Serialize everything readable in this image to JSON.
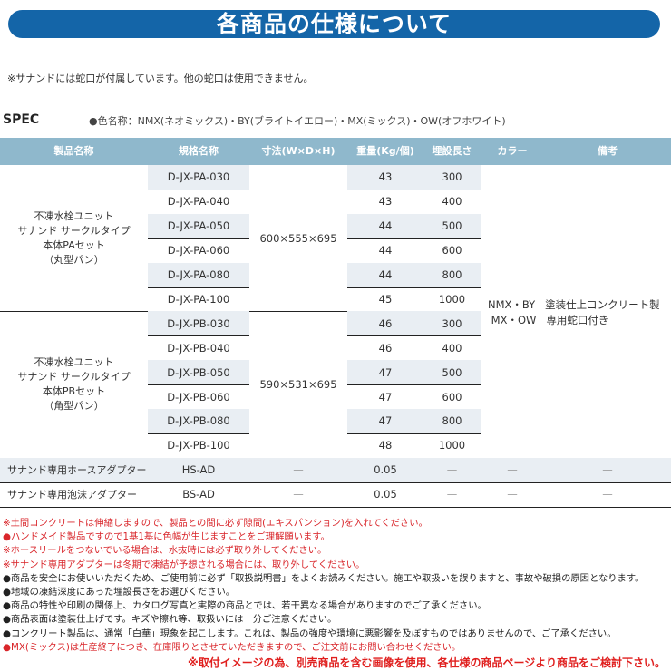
{
  "title": "各商品の仕様について",
  "top_note": "※サナンドには蛇口が付属しています。他の蛇口は使用できません。",
  "spec_label": "SPEC",
  "color_names": "●色名称：NMX(ネオミックス)・BY(ブライトイエロー)・MX(ミックス)・OW(オフホワイト)",
  "table": {
    "headers": [
      "製品名称",
      "規格名称",
      "寸法(W×D×H)",
      "重量(Kg/個)",
      "埋設長さ",
      "カラー",
      "備考"
    ],
    "groups": [
      {
        "name_lines": [
          "不凍水栓ユニット",
          "サナンド サークルタイプ",
          "本体PAセット",
          "（丸型パン）"
        ],
        "dims": "600×555×695",
        "rows": [
          [
            "D-JX-PA-030",
            "43",
            "300"
          ],
          [
            "D-JX-PA-040",
            "43",
            "400"
          ],
          [
            "D-JX-PA-050",
            "44",
            "500"
          ],
          [
            "D-JX-PA-060",
            "44",
            "600"
          ],
          [
            "D-JX-PA-080",
            "44",
            "800"
          ],
          [
            "D-JX-PA-100",
            "45",
            "1000"
          ]
        ]
      },
      {
        "name_lines": [
          "不凍水栓ユニット",
          "サナンド サークルタイプ",
          "本体PBセット",
          "（角型パン）"
        ],
        "dims": "590×531×695",
        "rows": [
          [
            "D-JX-PB-030",
            "46",
            "300"
          ],
          [
            "D-JX-PB-040",
            "46",
            "400"
          ],
          [
            "D-JX-PB-050",
            "47",
            "500"
          ],
          [
            "D-JX-PB-060",
            "47",
            "600"
          ],
          [
            "D-JX-PB-080",
            "47",
            "800"
          ],
          [
            "D-JX-PB-100",
            "48",
            "1000"
          ]
        ]
      }
    ],
    "color_lines": [
      [
        "NMX・BY",
        "塗装仕上コンクリート製"
      ],
      [
        "MX・OW",
        "専用蛇口付き"
      ]
    ],
    "accessories": [
      [
        "サナンド専用ホースアダプター",
        "HS-AD",
        "—",
        "0.05",
        "—",
        "—",
        "—"
      ],
      [
        "サナンド専用泡沫アダプター",
        "BS-AD",
        "—",
        "0.05",
        "—",
        "—",
        "—"
      ]
    ]
  },
  "notes": [
    {
      "text": "※土間コンクリートは伸縮しますので、製品との間に必ず隙間(エキスパンション)を入れてください。",
      "color": "red"
    },
    {
      "text": "●ハンドメイド製品ですので1基1基に色幅が生じますことをご理解願います。",
      "color": "red"
    },
    {
      "text": "※ホースリールをつないでいる場合は、水抜時には必ず取り外してください。",
      "color": "red"
    },
    {
      "text": "※サナンド専用アダプターは冬期で凍結が予想される場合には、取り外してください。",
      "color": "red"
    },
    {
      "text": "●商品を安全にお使いいただくため、ご使用前に必ず「取扱説明書」をよくお読みください。施工や取扱いを誤りますと、事故や破損の原因となります。",
      "color": "black"
    },
    {
      "text": "●地域の凍結深度にあった埋設長さをお選びください。",
      "color": "black"
    },
    {
      "text": "●商品の特性や印刷の関係上、カタログ写真と実際の商品とでは、若干異なる場合がありますのでご了承ください。",
      "color": "black"
    },
    {
      "text": "●商品表面は塗装仕上げです。キズや擦れ等、取扱いには十分ご注意ください。",
      "color": "black"
    },
    {
      "text": "●コンクリート製品は、通常「白華」現象を起こします。これは、製品の強度や環境に悪影響を及ぼすものではありませんので、ご了承ください。",
      "color": "black"
    },
    {
      "text": "●MX(ミックス)は生産終了につき、在庫限りとさせていただきますので、ご注文前にお問い合わせください。",
      "color": "red"
    }
  ],
  "footer": "※取付イメージの為、別売商品を含む画像を使用、各仕様の商品ページより商品をご検討下さい。",
  "colors": {
    "banner": "#1465a8",
    "header": "#8fb8cc",
    "shade": "#e9eef3",
    "warning": "#d9262b"
  }
}
